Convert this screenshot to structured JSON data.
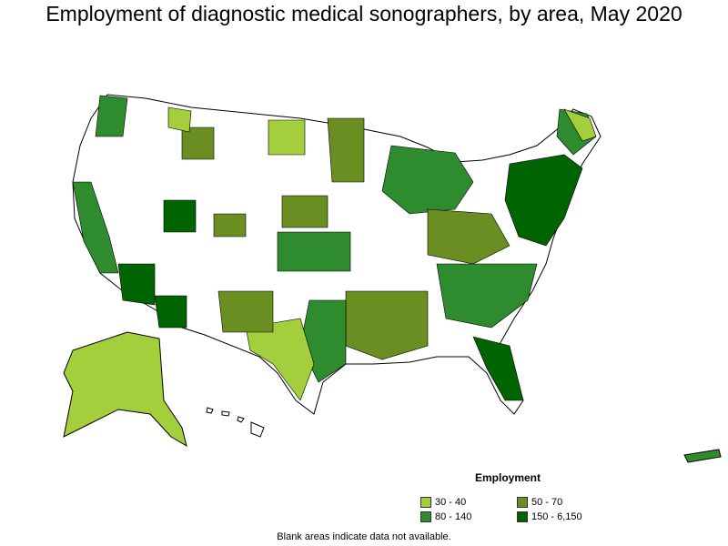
{
  "title": "Employment of diagnostic medical sonographers, by area, May 2020",
  "legend": {
    "title": "Employment",
    "items": [
      {
        "label": "30 - 40",
        "color": "#a3cf3d"
      },
      {
        "label": "50 - 70",
        "color": "#6b8e23"
      },
      {
        "label": "80 - 140",
        "color": "#2e8b2e"
      },
      {
        "label": "150 - 6,150",
        "color": "#006400"
      }
    ]
  },
  "note": "Blank areas indicate data not available.",
  "colors": {
    "tier1": "#a3cf3d",
    "tier2": "#6b8e23",
    "tier3": "#2e8b2e",
    "tier4": "#006400",
    "blank": "#ffffff",
    "border": "#000000"
  }
}
